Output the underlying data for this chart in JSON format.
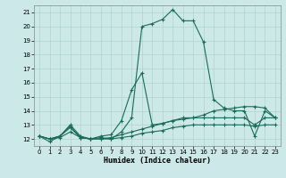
{
  "title": "",
  "xlabel": "Humidex (Indice chaleur)",
  "background_color": "#cce8e8",
  "grid_color": "#b0d4cc",
  "line_color": "#1a6b5a",
  "xlim": [
    -0.5,
    23.5
  ],
  "ylim": [
    11.5,
    21.5
  ],
  "yticks": [
    12,
    13,
    14,
    15,
    16,
    17,
    18,
    19,
    20,
    21
  ],
  "xticks": [
    0,
    1,
    2,
    3,
    4,
    5,
    6,
    7,
    8,
    9,
    10,
    11,
    12,
    13,
    14,
    15,
    16,
    17,
    18,
    19,
    20,
    21,
    22,
    23
  ],
  "series": [
    {
      "x": [
        0,
        1,
        2,
        3,
        4,
        5,
        6,
        7,
        8,
        9,
        10,
        11,
        12,
        13,
        14,
        15,
        16,
        17,
        18,
        19,
        20,
        21,
        22,
        23
      ],
      "y": [
        12.2,
        11.8,
        12.2,
        12.9,
        12.1,
        12.0,
        12.1,
        12.0,
        12.5,
        13.5,
        20.0,
        20.2,
        20.5,
        21.2,
        20.4,
        20.4,
        18.9,
        14.8,
        14.2,
        14.0,
        14.0,
        12.2,
        14.0,
        13.5
      ]
    },
    {
      "x": [
        0,
        1,
        2,
        3,
        4,
        5,
        6,
        7,
        8,
        9,
        10,
        11,
        12,
        13,
        14,
        15,
        16,
        17,
        18,
        19,
        20,
        21,
        22,
        23
      ],
      "y": [
        12.2,
        12.0,
        12.2,
        13.0,
        12.2,
        12.0,
        12.2,
        12.3,
        13.3,
        15.5,
        16.7,
        13.0,
        13.1,
        13.3,
        13.5,
        13.5,
        13.7,
        14.0,
        14.1,
        14.2,
        14.3,
        14.3,
        14.2,
        13.5
      ]
    },
    {
      "x": [
        0,
        1,
        2,
        3,
        4,
        5,
        6,
        7,
        8,
        9,
        10,
        11,
        12,
        13,
        14,
        15,
        16,
        17,
        18,
        19,
        20,
        21,
        22,
        23
      ],
      "y": [
        12.2,
        12.0,
        12.2,
        12.8,
        12.1,
        12.0,
        12.0,
        12.1,
        12.3,
        12.5,
        12.7,
        12.9,
        13.1,
        13.3,
        13.4,
        13.5,
        13.5,
        13.5,
        13.5,
        13.5,
        13.5,
        13.0,
        13.5,
        13.5
      ]
    },
    {
      "x": [
        0,
        1,
        2,
        3,
        4,
        5,
        6,
        7,
        8,
        9,
        10,
        11,
        12,
        13,
        14,
        15,
        16,
        17,
        18,
        19,
        20,
        21,
        22,
        23
      ],
      "y": [
        12.2,
        12.0,
        12.1,
        12.5,
        12.1,
        12.0,
        12.0,
        12.0,
        12.1,
        12.2,
        12.4,
        12.5,
        12.6,
        12.8,
        12.9,
        13.0,
        13.0,
        13.0,
        13.0,
        13.0,
        13.0,
        12.9,
        13.0,
        13.0
      ]
    }
  ]
}
